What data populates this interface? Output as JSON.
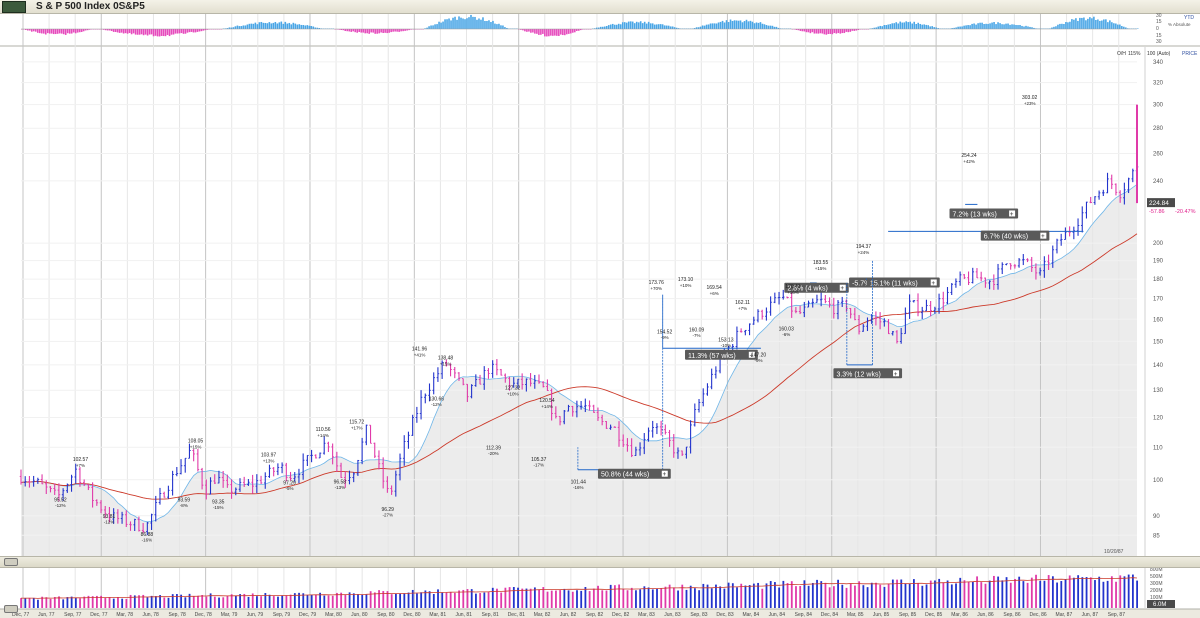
{
  "header": {
    "title": "S & P 500 Index  0S&P5",
    "star": "☆"
  },
  "ytd": {
    "label": "YTD",
    "sublabel": "% Absolute",
    "ticks": [
      "30",
      "15",
      "0",
      "15",
      "30"
    ],
    "pattern": [
      {
        "from": 0.0,
        "to": 0.07,
        "sign": -1,
        "amp": 0.45
      },
      {
        "from": 0.07,
        "to": 0.18,
        "sign": -1,
        "amp": 0.55
      },
      {
        "from": 0.18,
        "to": 0.28,
        "sign": 1,
        "amp": 0.55
      },
      {
        "from": 0.28,
        "to": 0.36,
        "sign": -1,
        "amp": 0.35
      },
      {
        "from": 0.36,
        "to": 0.445,
        "sign": 1,
        "amp": 1.0
      },
      {
        "from": 0.445,
        "to": 0.51,
        "sign": -1,
        "amp": 0.55
      },
      {
        "from": 0.51,
        "to": 0.6,
        "sign": 1,
        "amp": 0.55
      },
      {
        "from": 0.6,
        "to": 0.69,
        "sign": 1,
        "amp": 0.7
      },
      {
        "from": 0.69,
        "to": 0.76,
        "sign": -1,
        "amp": 0.4
      },
      {
        "from": 0.76,
        "to": 0.83,
        "sign": 1,
        "amp": 0.55
      },
      {
        "from": 0.83,
        "to": 0.92,
        "sign": 1,
        "amp": 0.5
      },
      {
        "from": 0.92,
        "to": 1.0,
        "sign": 1,
        "amp": 0.9
      }
    ]
  },
  "price_panel": {
    "top_labels": [
      "O/H",
      "115%",
      "100 (Auto)",
      "PRICE"
    ],
    "last_price": "224.84",
    "change": "-57.86",
    "change_pct": "-20.47%",
    "date_stamp": "10/20/87"
  },
  "chart_data": {
    "type": "ohlc",
    "scale": "log",
    "y_axis_label": "PRICE",
    "ylim": [
      80,
      350
    ],
    "y_ticks": [
      85,
      90,
      100,
      110,
      120,
      130,
      140,
      150,
      160,
      170,
      180,
      190,
      200,
      240,
      260,
      280,
      300,
      320,
      340
    ],
    "x_ticks": [
      "Dec, 77",
      "Jun, 77",
      "Sep, 77",
      "Dec, 77",
      "Mar, 78",
      "Jun, 78",
      "Sep, 78",
      "Dec, 78",
      "Mar, 79",
      "Jun, 79",
      "Sep, 79",
      "Dec, 79",
      "Mar, 80",
      "Jun, 80",
      "Sep, 80",
      "Dec, 80",
      "Mar, 81",
      "Jun, 81",
      "Sep, 81",
      "Dec, 81",
      "Mar, 82",
      "Jun, 82",
      "Sep, 82",
      "Dec, 82",
      "Mar, 83",
      "Jun, 83",
      "Sep, 83",
      "Dec, 83",
      "Mar, 84",
      "Jun, 84",
      "Sep, 84",
      "Dec, 84",
      "Mar, 85",
      "Jun, 85",
      "Sep, 85",
      "Dec, 85",
      "Mar, 86",
      "Jun, 86",
      "Sep, 86",
      "Dec, 86",
      "Mar, 87",
      "Jun, 87",
      "Sep, 87"
    ],
    "key_points": [
      {
        "t": 0.0,
        "v": 101
      },
      {
        "t": 0.015,
        "v": 99
      },
      {
        "t": 0.033,
        "v": 95
      },
      {
        "t": 0.049,
        "v": 103
      },
      {
        "t": 0.063,
        "v": 95
      },
      {
        "t": 0.079,
        "v": 90
      },
      {
        "t": 0.1,
        "v": 88
      },
      {
        "t": 0.112,
        "v": 87
      },
      {
        "t": 0.125,
        "v": 95
      },
      {
        "t": 0.14,
        "v": 103
      },
      {
        "t": 0.152,
        "v": 109
      },
      {
        "t": 0.165,
        "v": 97
      },
      {
        "t": 0.175,
        "v": 101
      },
      {
        "t": 0.185,
        "v": 97
      },
      {
        "t": 0.197,
        "v": 98
      },
      {
        "t": 0.21,
        "v": 99
      },
      {
        "t": 0.232,
        "v": 104
      },
      {
        "t": 0.243,
        "v": 101
      },
      {
        "t": 0.263,
        "v": 108
      },
      {
        "t": 0.275,
        "v": 112
      },
      {
        "t": 0.288,
        "v": 100
      },
      {
        "t": 0.298,
        "v": 103
      },
      {
        "t": 0.31,
        "v": 116
      },
      {
        "t": 0.32,
        "v": 104
      },
      {
        "t": 0.33,
        "v": 95
      },
      {
        "t": 0.343,
        "v": 110
      },
      {
        "t": 0.36,
        "v": 128
      },
      {
        "t": 0.38,
        "v": 141
      },
      {
        "t": 0.4,
        "v": 128
      },
      {
        "t": 0.42,
        "v": 139
      },
      {
        "t": 0.44,
        "v": 132
      },
      {
        "t": 0.455,
        "v": 133
      },
      {
        "t": 0.47,
        "v": 130
      },
      {
        "t": 0.48,
        "v": 118
      },
      {
        "t": 0.49,
        "v": 124
      },
      {
        "t": 0.505,
        "v": 124
      },
      {
        "t": 0.517,
        "v": 119
      },
      {
        "t": 0.53,
        "v": 117
      },
      {
        "t": 0.55,
        "v": 108
      },
      {
        "t": 0.565,
        "v": 118
      },
      {
        "t": 0.58,
        "v": 112
      },
      {
        "t": 0.592,
        "v": 106
      },
      {
        "t": 0.605,
        "v": 123
      },
      {
        "t": 0.625,
        "v": 141
      },
      {
        "t": 0.645,
        "v": 155
      },
      {
        "t": 0.665,
        "v": 164
      },
      {
        "t": 0.682,
        "v": 171
      },
      {
        "t": 0.695,
        "v": 162
      },
      {
        "t": 0.705,
        "v": 165
      },
      {
        "t": 0.715,
        "v": 169
      },
      {
        "t": 0.73,
        "v": 165
      },
      {
        "t": 0.74,
        "v": 167
      },
      {
        "t": 0.75,
        "v": 155
      },
      {
        "t": 0.76,
        "v": 161
      },
      {
        "t": 0.775,
        "v": 158
      },
      {
        "t": 0.785,
        "v": 149
      },
      {
        "t": 0.795,
        "v": 167
      },
      {
        "t": 0.81,
        "v": 165
      },
      {
        "t": 0.825,
        "v": 169
      },
      {
        "t": 0.84,
        "v": 179
      },
      {
        "t": 0.855,
        "v": 181
      },
      {
        "t": 0.87,
        "v": 179
      },
      {
        "t": 0.885,
        "v": 190
      },
      {
        "t": 0.9,
        "v": 189
      },
      {
        "t": 0.913,
        "v": 182
      },
      {
        "t": 0.93,
        "v": 201
      },
      {
        "t": 0.945,
        "v": 212
      },
      {
        "t": 0.96,
        "v": 228
      },
      {
        "t": 0.975,
        "v": 240
      },
      {
        "t": 0.985,
        "v": 232
      },
      {
        "t": 0.995,
        "v": 244
      },
      {
        "t": 1.0,
        "v": 250
      }
    ],
    "annotations": [
      {
        "t": 0.0353,
        "v": 96.1,
        "label": "95.52",
        "pct": "-12%",
        "pos": "below"
      },
      {
        "t": 0.0533,
        "v": 102.6,
        "label": "102.57",
        "pct": "+7%",
        "pos": "above"
      },
      {
        "t": 0.0789,
        "v": 91.6,
        "label": "93.81",
        "pct": "-12%",
        "pos": "below"
      },
      {
        "t": 0.1128,
        "v": 86.8,
        "label": "86.88",
        "pct": "-16%",
        "pos": "below"
      },
      {
        "t": 0.1459,
        "v": 96.1,
        "label": "93.59",
        "pct": "-8%",
        "pos": "below"
      },
      {
        "t": 0.1564,
        "v": 108.3,
        "label": "108.05",
        "pct": "+15%",
        "pos": "above"
      },
      {
        "t": 0.1767,
        "v": 95.5,
        "label": "93.35",
        "pct": "-15%",
        "pos": "below"
      },
      {
        "t": 0.2218,
        "v": 103.9,
        "label": "103.97",
        "pct": "+13%",
        "pos": "above"
      },
      {
        "t": 0.2406,
        "v": 100.9,
        "label": "97.29",
        "pct": "-5%",
        "pos": "below"
      },
      {
        "t": 0.2707,
        "v": 112.0,
        "label": "110.56",
        "pct": "+14%",
        "pos": "above"
      },
      {
        "t": 0.2857,
        "v": 101.3,
        "label": "96.58",
        "pct": "-13%",
        "pos": "below"
      },
      {
        "t": 0.3008,
        "v": 114.5,
        "label": "115.72",
        "pct": "+17%",
        "pos": "above"
      },
      {
        "t": 0.3286,
        "v": 93.5,
        "label": "96.29",
        "pct": "-27%",
        "pos": "below"
      },
      {
        "t": 0.3571,
        "v": 141.9,
        "label": "141.96",
        "pct": "+41%",
        "pos": "above"
      },
      {
        "t": 0.3722,
        "v": 129.2,
        "label": "130.66",
        "pct": "-12%",
        "pos": "below"
      },
      {
        "t": 0.3804,
        "v": 138.1,
        "label": "138.48",
        "pct": "+15%",
        "pos": "above"
      },
      {
        "t": 0.4233,
        "v": 111.9,
        "label": "112.39",
        "pct": "-20%",
        "pos": "below"
      },
      {
        "t": 0.4406,
        "v": 126.6,
        "label": "127.32",
        "pct": "+10%",
        "pos": "above"
      },
      {
        "t": 0.4639,
        "v": 108.1,
        "label": "105.37",
        "pct": "-17%",
        "pos": "below"
      },
      {
        "t": 0.4714,
        "v": 121.9,
        "label": "120.54",
        "pct": "+14%",
        "pos": "above"
      },
      {
        "t": 0.4993,
        "v": 101.2,
        "label": "101.44",
        "pct": "-16%",
        "pos": "below"
      },
      {
        "t": 0.5692,
        "v": 172.3,
        "label": "173.76",
        "pct": "+70%",
        "pos": "above"
      },
      {
        "t": 0.5767,
        "v": 157.1,
        "label": "154.52",
        "pct": "-9%",
        "pos": "below"
      },
      {
        "t": 0.5955,
        "v": 173.7,
        "label": "173.10",
        "pct": "+10%",
        "pos": "above"
      },
      {
        "t": 0.6053,
        "v": 158.0,
        "label": "160.09",
        "pct": "-7%",
        "pos": "below"
      },
      {
        "t": 0.6211,
        "v": 169.8,
        "label": "169.54",
        "pct": "+6%",
        "pos": "above"
      },
      {
        "t": 0.6316,
        "v": 153.4,
        "label": "153.13",
        "pct": "-10%",
        "pos": "below"
      },
      {
        "t": 0.6466,
        "v": 162.4,
        "label": "162.11",
        "pct": "+7%",
        "pos": "above"
      },
      {
        "t": 0.6609,
        "v": 146.9,
        "label": "147.20",
        "pct": "-9%",
        "pos": "below"
      },
      {
        "t": 0.6917,
        "v": 170.4,
        "label": "170.41",
        "pct": "+16%",
        "pos": "above"
      },
      {
        "t": 0.6857,
        "v": 158.4,
        "label": "160.03",
        "pct": "-6%",
        "pos": "below"
      },
      {
        "t": 0.7165,
        "v": 182.6,
        "label": "183.55",
        "pct": "+15%",
        "pos": "above"
      },
      {
        "t": 0.7549,
        "v": 191.5,
        "label": "194.37",
        "pct": "+24%",
        "pos": "above"
      },
      {
        "t": 0.8495,
        "v": 250.1,
        "label": "254.24",
        "pct": "+42%",
        "pos": "above"
      },
      {
        "t": 0.9038,
        "v": 296.4,
        "label": "303.02",
        "pct": "+23%",
        "pos": "above"
      }
    ],
    "bracket_labels": [
      {
        "label": "50.8% (44 wks)",
        "x1": 0.499,
        "x2": 0.575,
        "v": 103,
        "box_t": 0.517,
        "box_v": 101.5,
        "vertical": "right-up"
      },
      {
        "label": "11.3% (57 wks)",
        "x1": 0.575,
        "x2": 0.663,
        "v": 147,
        "box_t": 0.595,
        "box_v": 143.8,
        "vertical": "left-up"
      },
      {
        "label": "2.8% (4 wks)",
        "x1": 0.707,
        "x2": 0.713,
        "v": 178,
        "box_t": 0.684,
        "box_v": 175,
        "vertical": "none"
      },
      {
        "label": "-5.7%",
        "x1": 0.744,
        "x2": 0.757,
        "v": 180,
        "box_t": 0.742,
        "box_v": 177.7,
        "vertical": "none"
      },
      {
        "label": "15.1% (11 wks)",
        "x1": 0.757,
        "x2": 0.77,
        "v": 180,
        "box_t": 0.758,
        "box_v": 177.7,
        "vertical": "none"
      },
      {
        "label": "3.3% (12 wks)",
        "x1": 0.74,
        "x2": 0.763,
        "v": 140,
        "box_t": 0.728,
        "box_v": 136.2,
        "vertical": "both"
      },
      {
        "label": "7.2% (13 wks)",
        "x1": 0.846,
        "x2": 0.857,
        "v": 224,
        "box_t": 0.832,
        "box_v": 217.5,
        "vertical": "none"
      },
      {
        "label": "6.7% (40 wks)",
        "x1": 0.777,
        "x2": 0.952,
        "v": 207,
        "box_t": 0.86,
        "box_v": 203.8,
        "vertical": "none"
      }
    ],
    "moving_averages": [
      "short (light blue)",
      "long (red)"
    ]
  },
  "volume_panel": {
    "label": "VOLUME",
    "log_label": "LOG",
    "ticks": [
      "800M",
      "500M",
      "300M",
      "200M",
      "100M"
    ],
    "last_value": "6.0M"
  },
  "colors": {
    "up_bar": "#2233cc",
    "down_bar": "#e03aa9",
    "ma_short": "#6fb6e8",
    "ma_long": "#cc3a2a",
    "ytd_pos": "#4aa6e6",
    "ytd_neg": "#e64bbd",
    "label_box": "#5a5a5a",
    "bracket": "#2066c8"
  }
}
